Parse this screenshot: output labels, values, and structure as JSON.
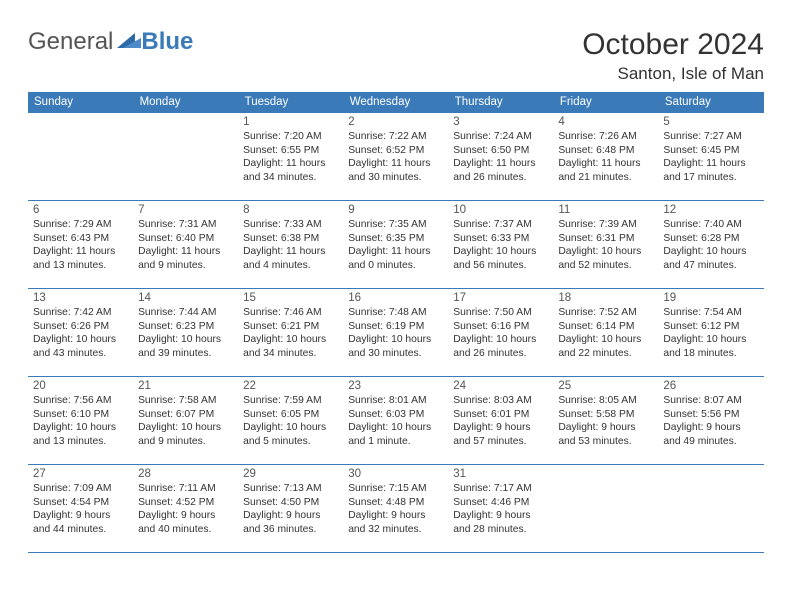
{
  "logo": {
    "text_general": "General",
    "text_blue": "Blue"
  },
  "title": "October 2024",
  "location": "Santon, Isle of Man",
  "header_bg": "#3b7ab8",
  "border_color": "#3b7ab8",
  "day_headers": [
    "Sunday",
    "Monday",
    "Tuesday",
    "Wednesday",
    "Thursday",
    "Friday",
    "Saturday"
  ],
  "weeks": [
    [
      null,
      null,
      {
        "n": "1",
        "sunrise": "7:20 AM",
        "sunset": "6:55 PM",
        "dh": "11",
        "dm": "34"
      },
      {
        "n": "2",
        "sunrise": "7:22 AM",
        "sunset": "6:52 PM",
        "dh": "11",
        "dm": "30"
      },
      {
        "n": "3",
        "sunrise": "7:24 AM",
        "sunset": "6:50 PM",
        "dh": "11",
        "dm": "26"
      },
      {
        "n": "4",
        "sunrise": "7:26 AM",
        "sunset": "6:48 PM",
        "dh": "11",
        "dm": "21"
      },
      {
        "n": "5",
        "sunrise": "7:27 AM",
        "sunset": "6:45 PM",
        "dh": "11",
        "dm": "17"
      }
    ],
    [
      {
        "n": "6",
        "sunrise": "7:29 AM",
        "sunset": "6:43 PM",
        "dh": "11",
        "dm": "13"
      },
      {
        "n": "7",
        "sunrise": "7:31 AM",
        "sunset": "6:40 PM",
        "dh": "11",
        "dm": "9"
      },
      {
        "n": "8",
        "sunrise": "7:33 AM",
        "sunset": "6:38 PM",
        "dh": "11",
        "dm": "4"
      },
      {
        "n": "9",
        "sunrise": "7:35 AM",
        "sunset": "6:35 PM",
        "dh": "11",
        "dm": "0"
      },
      {
        "n": "10",
        "sunrise": "7:37 AM",
        "sunset": "6:33 PM",
        "dh": "10",
        "dm": "56"
      },
      {
        "n": "11",
        "sunrise": "7:39 AM",
        "sunset": "6:31 PM",
        "dh": "10",
        "dm": "52"
      },
      {
        "n": "12",
        "sunrise": "7:40 AM",
        "sunset": "6:28 PM",
        "dh": "10",
        "dm": "47"
      }
    ],
    [
      {
        "n": "13",
        "sunrise": "7:42 AM",
        "sunset": "6:26 PM",
        "dh": "10",
        "dm": "43"
      },
      {
        "n": "14",
        "sunrise": "7:44 AM",
        "sunset": "6:23 PM",
        "dh": "10",
        "dm": "39"
      },
      {
        "n": "15",
        "sunrise": "7:46 AM",
        "sunset": "6:21 PM",
        "dh": "10",
        "dm": "34"
      },
      {
        "n": "16",
        "sunrise": "7:48 AM",
        "sunset": "6:19 PM",
        "dh": "10",
        "dm": "30"
      },
      {
        "n": "17",
        "sunrise": "7:50 AM",
        "sunset": "6:16 PM",
        "dh": "10",
        "dm": "26"
      },
      {
        "n": "18",
        "sunrise": "7:52 AM",
        "sunset": "6:14 PM",
        "dh": "10",
        "dm": "22"
      },
      {
        "n": "19",
        "sunrise": "7:54 AM",
        "sunset": "6:12 PM",
        "dh": "10",
        "dm": "18"
      }
    ],
    [
      {
        "n": "20",
        "sunrise": "7:56 AM",
        "sunset": "6:10 PM",
        "dh": "10",
        "dm": "13"
      },
      {
        "n": "21",
        "sunrise": "7:58 AM",
        "sunset": "6:07 PM",
        "dh": "10",
        "dm": "9"
      },
      {
        "n": "22",
        "sunrise": "7:59 AM",
        "sunset": "6:05 PM",
        "dh": "10",
        "dm": "5"
      },
      {
        "n": "23",
        "sunrise": "8:01 AM",
        "sunset": "6:03 PM",
        "dh": "10",
        "dm": "1",
        "dm_label": "minute"
      },
      {
        "n": "24",
        "sunrise": "8:03 AM",
        "sunset": "6:01 PM",
        "dh": "9",
        "dm": "57"
      },
      {
        "n": "25",
        "sunrise": "8:05 AM",
        "sunset": "5:58 PM",
        "dh": "9",
        "dm": "53"
      },
      {
        "n": "26",
        "sunrise": "8:07 AM",
        "sunset": "5:56 PM",
        "dh": "9",
        "dm": "49"
      }
    ],
    [
      {
        "n": "27",
        "sunrise": "7:09 AM",
        "sunset": "4:54 PM",
        "dh": "9",
        "dm": "44"
      },
      {
        "n": "28",
        "sunrise": "7:11 AM",
        "sunset": "4:52 PM",
        "dh": "9",
        "dm": "40"
      },
      {
        "n": "29",
        "sunrise": "7:13 AM",
        "sunset": "4:50 PM",
        "dh": "9",
        "dm": "36"
      },
      {
        "n": "30",
        "sunrise": "7:15 AM",
        "sunset": "4:48 PM",
        "dh": "9",
        "dm": "32"
      },
      {
        "n": "31",
        "sunrise": "7:17 AM",
        "sunset": "4:46 PM",
        "dh": "9",
        "dm": "28"
      },
      null,
      null
    ]
  ]
}
